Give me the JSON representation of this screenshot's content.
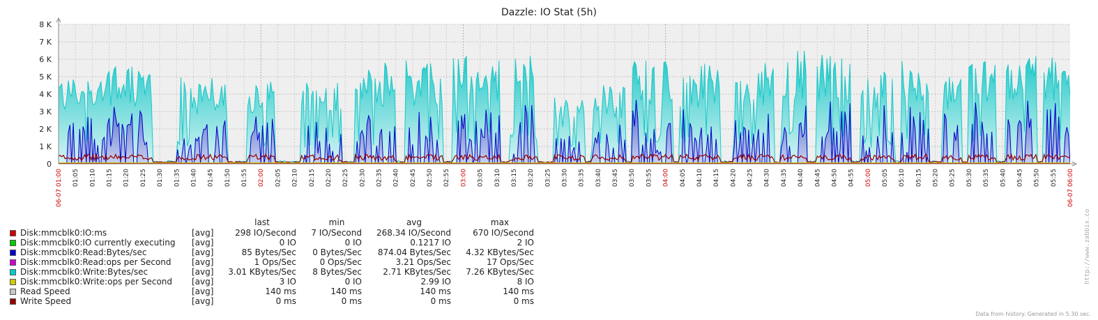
{
  "chart_data": {
    "type": "area",
    "title": "Dazzle: IO Stat (5h)",
    "y_ticks": [
      "0",
      "1 K",
      "2 K",
      "3 K",
      "4 K",
      "5 K",
      "6 K",
      "7 K",
      "8 K"
    ],
    "ylim": [
      0,
      8000
    ],
    "grid": true,
    "x_start_label": "06-07 01:00",
    "x_end_label": "06-07 06:00",
    "x_ticks": [
      "01:05",
      "01:10",
      "01:15",
      "01:20",
      "01:25",
      "01:30",
      "01:35",
      "01:40",
      "01:45",
      "01:50",
      "01:55",
      "02:00",
      "02:05",
      "02:10",
      "02:15",
      "02:20",
      "02:25",
      "02:30",
      "02:35",
      "02:40",
      "02:45",
      "02:50",
      "02:55",
      "03:00",
      "03:05",
      "03:10",
      "03:15",
      "03:20",
      "03:25",
      "03:30",
      "03:35",
      "03:40",
      "03:45",
      "03:50",
      "03:55",
      "04:00",
      "04:05",
      "04:10",
      "04:15",
      "04:20",
      "04:25",
      "04:30",
      "04:35",
      "04:40",
      "04:45",
      "04:50",
      "04:55",
      "05:00",
      "05:05",
      "05:10",
      "05:15",
      "05:20",
      "05:25",
      "05:30",
      "05:35",
      "05:40",
      "05:45",
      "05:50",
      "05:55"
    ],
    "major_ticks": [
      "02:00",
      "03:00",
      "04:00",
      "05:00"
    ],
    "series_colors": {
      "write_bytes": "#1ac8c8",
      "read_bytes": "#0000c8",
      "write_speed": "#960000",
      "io_ms": "#c80000",
      "write_ops": "#c8c800"
    },
    "legend": {
      "columns": [
        "last",
        "min",
        "avg",
        "max"
      ],
      "rows": [
        {
          "name": "Disk:mmcblk0:IO:ms",
          "func": "[avg]",
          "color": "#cc0000",
          "last": "298 IO/Second",
          "min": "7 IO/Second",
          "avg": "268.34 IO/Second",
          "max": "670 IO/Second"
        },
        {
          "name": "Disk:mmcblk0:IO currently executing",
          "func": "[avg]",
          "color": "#00cc00",
          "last": "0 IO",
          "min": "0 IO",
          "avg": "0.1217 IO",
          "max": "2 IO"
        },
        {
          "name": "Disk:mmcblk0:Read:Bytes/sec",
          "func": "[avg]",
          "color": "#0000cc",
          "last": "85 Bytes/Sec",
          "min": "0 Bytes/Sec",
          "avg": "874.04 Bytes/Sec",
          "max": "4.32 KBytes/Sec"
        },
        {
          "name": "Disk:mmcblk0:Read:ops per Second",
          "func": "[avg]",
          "color": "#cc00cc",
          "last": "1 Ops/Sec",
          "min": "0 Ops/Sec",
          "avg": "3.21 Ops/Sec",
          "max": "17 Ops/Sec"
        },
        {
          "name": "Disk:mmcblk0:Write:Bytes/sec",
          "func": "[avg]",
          "color": "#00cccc",
          "last": "3.01 KBytes/Sec",
          "min": "8 Bytes/Sec",
          "avg": "2.71 KBytes/Sec",
          "max": "7.26 KBytes/Sec"
        },
        {
          "name": "Disk:mmcblk0:Write:ops per Second",
          "func": "[avg]",
          "color": "#cccc00",
          "last": "3 IO",
          "min": "0 IO",
          "avg": "2.99 IO",
          "max": "8 IO"
        },
        {
          "name": "Read Speed",
          "func": "[avg]",
          "color": "#c8c8c8",
          "last": "140 ms",
          "min": "140 ms",
          "avg": "140 ms",
          "max": "140 ms"
        },
        {
          "name": "Write Speed",
          "func": "[avg]",
          "color": "#960000",
          "last": "0 ms",
          "min": "0 ms",
          "avg": "0 ms",
          "max": "0 ms"
        }
      ]
    }
  },
  "watermark": "http://www.zabbix.com",
  "footer_note": "Data from history. Generated in 5.30 sec."
}
